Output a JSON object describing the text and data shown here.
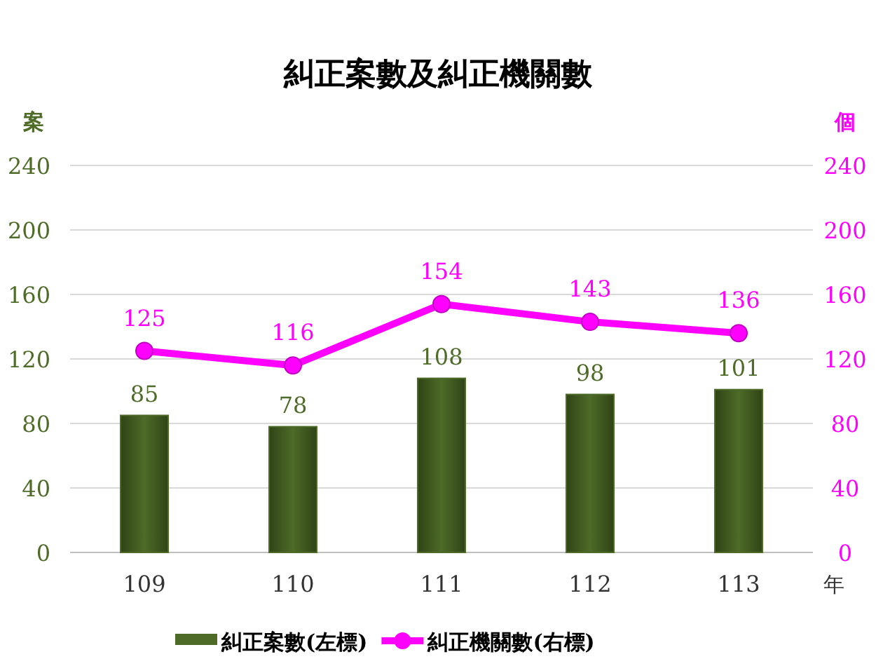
{
  "chart_data": {
    "type": "bar",
    "title": "糾正案數及糾正機關數",
    "ylabel": "案",
    "y2label": "個",
    "xlabel": "年",
    "categories": [
      "109",
      "110",
      "111",
      "112",
      "113"
    ],
    "series": [
      {
        "name": "糾正案數(左標)",
        "color": "#4e6b28",
        "values": [
          85,
          78,
          108,
          98,
          101
        ]
      },
      {
        "name": "糾正機關數(右標)",
        "type": "line",
        "axis": "y2",
        "color": "#ff00ff",
        "values": [
          125,
          116,
          154,
          143,
          136
        ]
      }
    ],
    "ylim": [
      0,
      240
    ],
    "yticks": [
      0,
      40,
      80,
      120,
      160,
      200,
      240
    ],
    "y2lim": [
      0,
      240
    ],
    "y2ticks": [
      0,
      40,
      80,
      120,
      160,
      200,
      240
    ],
    "marker": "circle",
    "data_labels": true,
    "grid": "y",
    "legend": "bottom"
  }
}
